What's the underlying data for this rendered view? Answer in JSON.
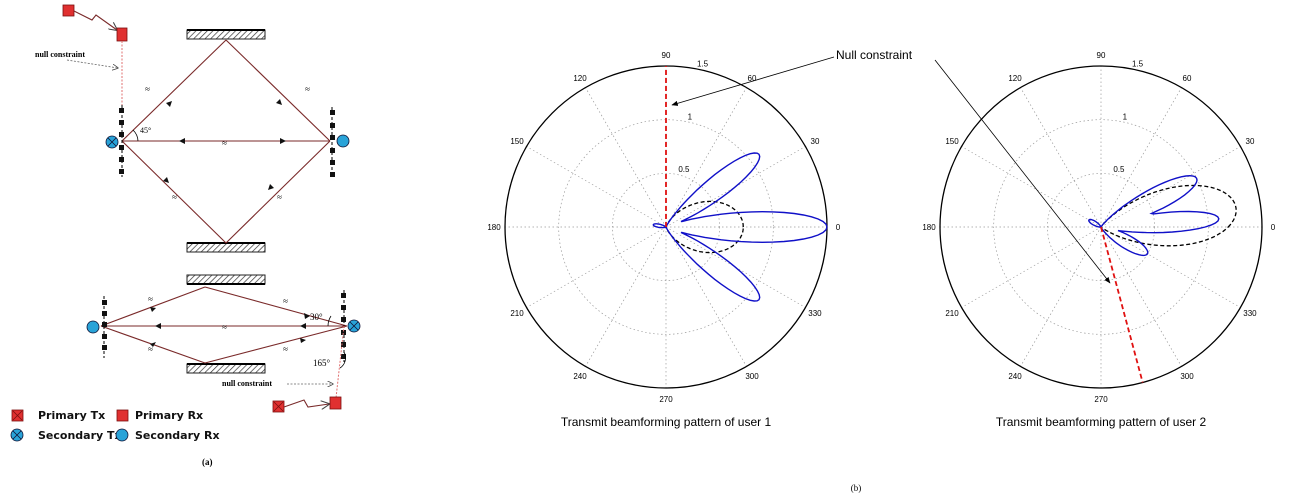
{
  "panel_a": {
    "caption": "(a)",
    "null_constraint_top": "null constraint",
    "null_constraint_bottom": "null constraint",
    "angle_45": "45°",
    "angle_30": "30°",
    "angle_165": "165°",
    "approx_mark": "≈",
    "legend": [
      {
        "label": "Primary Tx",
        "icon": "red-crossed-square-icon"
      },
      {
        "label": "Primary Rx",
        "icon": "red-square-icon"
      },
      {
        "label": "Secondary Tx",
        "icon": "blue-crossed-circle-icon"
      },
      {
        "label": "Secondary Rx",
        "icon": "blue-circle-icon"
      }
    ],
    "colors": {
      "primary": "#e03030",
      "secondary": "#29a3d8",
      "wire": "#7a2a2a"
    }
  },
  "panel_b": {
    "caption": "(b)",
    "annotation": "Null constraint",
    "plots": [
      {
        "title": "Transmit beamforming pattern of user 1",
        "radial_ticks": [
          "0.5",
          "1",
          "1.5"
        ],
        "radial_values": [
          0.5,
          1,
          1.5
        ],
        "r_max": 1.5,
        "angle_ticks": [
          "0",
          "30",
          "60",
          "90",
          "120",
          "150",
          "180",
          "210",
          "240",
          "270",
          "300",
          "330"
        ],
        "null_direction_deg": 90,
        "lobes": [
          {
            "angle_deg": 0,
            "peak": 1.5,
            "width_deg": 9
          },
          {
            "angle_deg": 38,
            "peak": 1.1,
            "width_deg": 9
          },
          {
            "angle_deg": -38,
            "peak": 1.1,
            "width_deg": 9
          },
          {
            "angle_deg": 170,
            "peak": 0.12,
            "width_deg": 12
          }
        ],
        "dashed_pattern": {
          "angle_deg": 0,
          "peak": 0.72,
          "width_deg": 38
        },
        "colors": {
          "pattern": "#1010c8",
          "dashed": "#000000",
          "null": "#e01010"
        }
      },
      {
        "title": "Transmit beamforming pattern of user 2",
        "radial_ticks": [
          "0.5",
          "1",
          "1.5"
        ],
        "radial_values": [
          0.5,
          1,
          1.5
        ],
        "r_max": 1.5,
        "angle_ticks": [
          "0",
          "30",
          "60",
          "90",
          "120",
          "150",
          "180",
          "210",
          "240",
          "270",
          "300",
          "330"
        ],
        "null_direction_deg": -75,
        "lobes": [
          {
            "angle_deg": 27,
            "peak": 1.0,
            "width_deg": 10
          },
          {
            "angle_deg": 4,
            "peak": 1.1,
            "width_deg": 8
          },
          {
            "angle_deg": -30,
            "peak": 0.5,
            "width_deg": 12
          },
          {
            "angle_deg": 150,
            "peak": 0.13,
            "width_deg": 14
          }
        ],
        "dashed_pattern": {
          "angle_deg": 8,
          "peak": 1.27,
          "width_deg": 24
        },
        "colors": {
          "pattern": "#1010c8",
          "dashed": "#000000",
          "null": "#e01010"
        }
      }
    ]
  }
}
